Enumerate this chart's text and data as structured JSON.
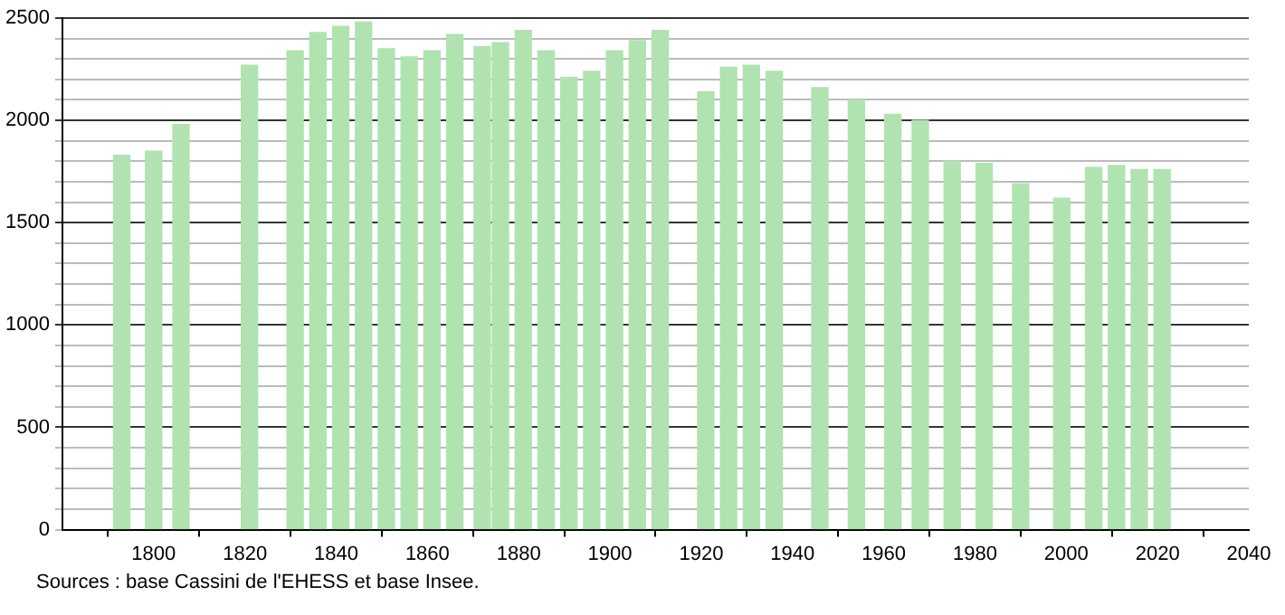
{
  "chart_data": {
    "type": "bar",
    "x": [
      1793,
      1800,
      1806,
      1821,
      1831,
      1836,
      1841,
      1846,
      1851,
      1856,
      1861,
      1866,
      1872,
      1876,
      1881,
      1886,
      1891,
      1896,
      1901,
      1906,
      1911,
      1921,
      1926,
      1931,
      1936,
      1946,
      1954,
      1962,
      1968,
      1975,
      1982,
      1990,
      1999,
      2006,
      2011,
      2016,
      2021
    ],
    "values": [
      1830,
      1850,
      1980,
      2270,
      2340,
      2430,
      2460,
      2480,
      2350,
      2310,
      2340,
      2420,
      2360,
      2380,
      2440,
      2340,
      2210,
      2240,
      2340,
      2390,
      2440,
      2140,
      2260,
      2270,
      2240,
      2160,
      2100,
      2030,
      2000,
      1800,
      1790,
      1690,
      1620,
      1770,
      1780,
      1760,
      1760
    ],
    "color": "#b0e3b0",
    "xlim": [
      1780,
      2040
    ],
    "xticks": [
      1800,
      1820,
      1840,
      1860,
      1880,
      1900,
      1920,
      1940,
      1960,
      1980,
      2000,
      2020,
      2040
    ],
    "ylim": [
      0,
      2500
    ],
    "yticks": [
      0,
      {
        "value": 100,
        "label": null
      },
      {
        "value": 200,
        "label": null
      },
      {
        "value": 300,
        "label": null
      },
      {
        "value": 400,
        "label": null
      },
      500,
      {
        "value": 600,
        "label": null
      },
      {
        "value": 700,
        "label": null
      },
      {
        "value": 800,
        "label": null
      },
      {
        "value": 900,
        "label": null
      },
      1000,
      {
        "value": 1100,
        "label": null
      },
      {
        "value": 1200,
        "label": null
      },
      {
        "value": 1300,
        "label": null
      },
      {
        "value": 1400,
        "label": null
      },
      1500,
      {
        "value": 1600,
        "label": null
      },
      {
        "value": 1700,
        "label": null
      },
      {
        "value": 1800,
        "label": null
      },
      {
        "value": 1900,
        "label": null
      },
      2000,
      {
        "value": 2100,
        "label": null
      },
      {
        "value": 2200,
        "label": null
      },
      {
        "value": 2300,
        "label": null
      },
      {
        "value": 2400,
        "label": null
      },
      2500
    ],
    "grid": "y",
    "annotations": [
      "Sources : base Cassini de l'EHESS et base Insee."
    ]
  }
}
